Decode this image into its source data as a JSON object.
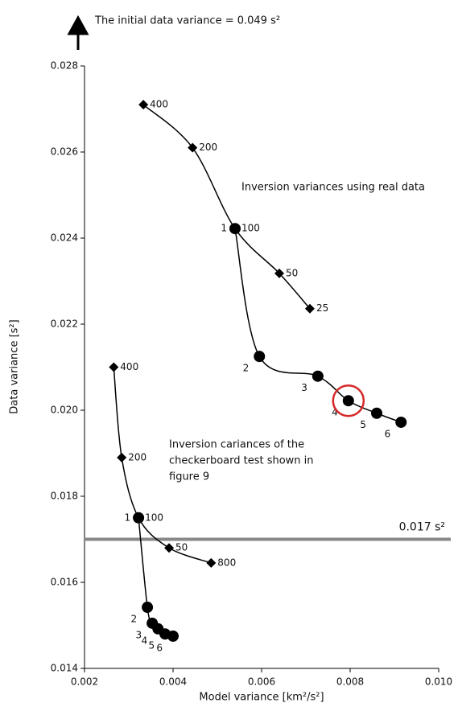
{
  "chart_data": {
    "type": "scatter-line",
    "note": "The initial data variance = 0.049 s²",
    "xlabel": "Model variance [km²/s²]",
    "ylabel": "Data variance [s²]",
    "xlim": [
      0.002,
      0.01
    ],
    "xticks": [
      0.002,
      0.004,
      0.006,
      0.008,
      {
        "value": 0.01,
        "label": "0.010"
      }
    ],
    "ylim": [
      0.014,
      0.028
    ],
    "yticks": [
      0.014,
      0.016,
      0.018,
      {
        "value": 0.02,
        "label": "0.020"
      },
      0.022,
      0.024,
      0.026,
      0.028
    ],
    "hline": {
      "value": 0.017,
      "label": "0.017 s²",
      "color": "#888888"
    },
    "annotations": [
      "Inversion variances using real data",
      "Inversion cariances of the",
      "checkerboard test shown in",
      "figure 9"
    ],
    "highlight_color": "#d62728",
    "series": [
      {
        "marker": "diamond",
        "color": "#000000",
        "x": [
          0.00333,
          0.00444,
          0.0054,
          0.0064,
          0.00709
        ],
        "values": [
          0.0271,
          0.0261,
          0.02422,
          0.02318,
          0.02236
        ],
        "labels": [
          "400",
          "200",
          "100",
          "50",
          "25"
        ]
      },
      {
        "marker": "circle",
        "color": "#000000",
        "x": [
          0.0054,
          0.00595,
          0.00727,
          0.00796,
          0.0086,
          0.00915
        ],
        "values": [
          0.02422,
          0.02125,
          0.02079,
          0.02022,
          0.01993,
          0.01972
        ],
        "labels": [
          "1",
          "2",
          "3",
          "4",
          "5",
          "6"
        ]
      },
      {
        "marker": "diamond",
        "color": "#000000",
        "x": [
          0.00266,
          0.00284,
          0.00322,
          0.00391,
          0.00486
        ],
        "values": [
          0.021,
          0.0189,
          0.0175,
          0.0168,
          0.01645
        ],
        "labels": [
          "400",
          "200",
          "100",
          "50",
          "800"
        ]
      },
      {
        "marker": "circle",
        "color": "#000000",
        "x": [
          0.00322,
          0.00342,
          0.00353,
          0.00366,
          0.00382,
          0.004
        ],
        "values": [
          0.0175,
          0.01542,
          0.01505,
          0.01492,
          0.0148,
          0.01475
        ],
        "labels": [
          "1",
          "2",
          "3",
          "4",
          "5",
          "6"
        ]
      }
    ]
  }
}
